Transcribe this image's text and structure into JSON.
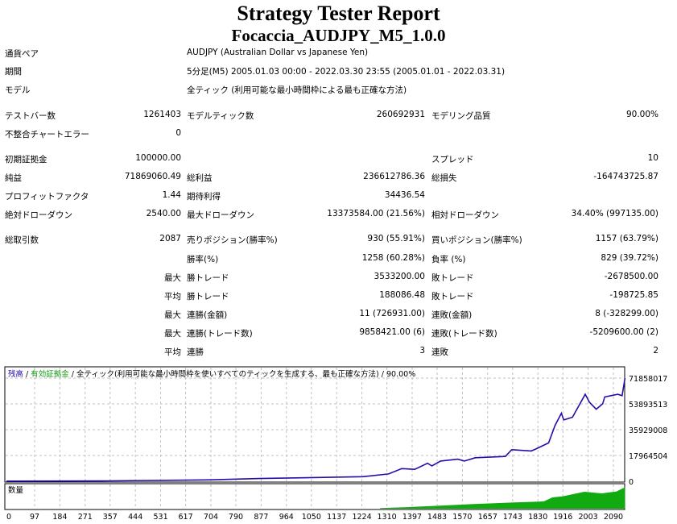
{
  "header": {
    "title": "Strategy Tester Report",
    "subtitle": "Focaccia_AUDJPY_M5_1.0.0"
  },
  "rows": [
    {
      "l1": "通貨ペア",
      "l2": "AUDJPY (Australian Dollar vs Japanese Yen)"
    },
    {
      "l1": "期間",
      "l2": "5分足(M5) 2005.01.03 00:00 - 2022.03.30 23:55 (2005.01.01 - 2022.03.31)"
    },
    {
      "l1": "モデル",
      "l2": "全ティック (利用可能な最小時間枠による最も正確な方法)"
    },
    {
      "l1": "テストバー数",
      "v1": "1261403",
      "l2": "モデルティック数",
      "v2": "260692931",
      "l3": "モデリング品質",
      "v3": "90.00%"
    },
    {
      "l1": "不整合チャートエラー",
      "v1": "0"
    },
    {
      "l1": "初期証拠金",
      "v1": "100000.00",
      "l3": "スプレッド",
      "v3": "10"
    },
    {
      "l1": "純益",
      "v1": "71869060.49",
      "l2": "総利益",
      "v2": "236612786.36",
      "l3": "総損失",
      "v3": "-164743725.87"
    },
    {
      "l1": "プロフィットファクタ",
      "v1": "1.44",
      "l2": "期待利得",
      "v2": "34436.54"
    },
    {
      "l1": "絶対ドローダウン",
      "v1": "2540.00",
      "l2": "最大ドローダウン",
      "v2": "13373584.00 (21.56%)",
      "l3": "相対ドローダウン",
      "v3": "34.40% (997135.00)"
    },
    {
      "l1": "総取引数",
      "v1": "2087",
      "l2": "売りポジション(勝率%)",
      "v2": "930 (55.91%)",
      "l3": "買いポジション(勝率%)",
      "v3": "1157 (63.79%)"
    },
    {
      "l2": "勝率(%)",
      "v2": "1258 (60.28%)",
      "l3": "負率 (%)",
      "v3": "829 (39.72%)"
    },
    {
      "v1": "最大",
      "l2": "勝トレード",
      "v2": "3533200.00",
      "l3": "敗トレード",
      "v3": "-2678500.00"
    },
    {
      "v1": "平均",
      "l2": "勝トレード",
      "v2": "188086.48",
      "l3": "敗トレード",
      "v3": "-198725.85"
    },
    {
      "v1": "最大",
      "l2": "連勝(金額)",
      "v2": "11 (726931.00)",
      "l3": "連敗(金額)",
      "v3": "8 (-328299.00)"
    },
    {
      "v1": "最大",
      "l2": "連勝(トレード数)",
      "v2": "9858421.00 (6)",
      "l3": "連敗(トレード数)",
      "v3": "-5209600.00 (2)"
    },
    {
      "v1": "平均",
      "l2": "連勝",
      "v2": "3",
      "l3": "連敗",
      "v3": "2"
    }
  ],
  "chart_data": {
    "type": "line",
    "legend": {
      "balance": "残高",
      "sep1": " / ",
      "equity": "有効証拠金",
      "sep2": " / ",
      "model": "全ティック(利用可能な最小時間枠を使いすべてのティックを生成する、最も正確な方法)",
      "sep3": " / ",
      "quality": "90.00%"
    },
    "volume_label": "数量",
    "colors": {
      "balance": "#2a0aa8",
      "equity": "#119911",
      "volume": "#11aa11",
      "grid": "#c0c0c0"
    },
    "xlim": [
      0,
      2135
    ],
    "ylim": [
      0,
      71858017
    ],
    "x_ticks": [
      0,
      97,
      184,
      271,
      357,
      444,
      531,
      617,
      704,
      790,
      877,
      964,
      1050,
      1137,
      1224,
      1310,
      1397,
      1483,
      1570,
      1657,
      1743,
      1830,
      1916,
      2003,
      2090
    ],
    "y_ticks": [
      "71858017",
      "53893513",
      "35929008",
      "17964504",
      "0"
    ],
    "series": [
      {
        "name": "残高",
        "x": [
          0,
          350,
          706,
          870,
          1227,
          1316,
          1361,
          1406,
          1450,
          1465,
          1495,
          1554,
          1577,
          1614,
          1718,
          1740,
          1807,
          1822,
          1867,
          1889,
          1911,
          1919,
          1949,
          1993,
          2008,
          2031,
          2053,
          2060,
          2105,
          2120,
          2130
        ],
        "values": [
          100000,
          300000,
          1000000,
          1900000,
          3200000,
          5100000,
          8800000,
          8300000,
          12600000,
          10700000,
          14100000,
          15400000,
          14100000,
          16400000,
          17300000,
          22000000,
          21100000,
          22400000,
          26700000,
          38900000,
          47400000,
          42700000,
          44600000,
          60600000,
          54900000,
          50200000,
          54000000,
          58700000,
          60600000,
          59600000,
          71858017
        ]
      },
      {
        "name": "数量",
        "x": [
          1287,
          1400,
          1500,
          1600,
          1750,
          1850,
          1880,
          1916,
          1990,
          2050,
          2100,
          2130
        ],
        "values": [
          0.03,
          0.08,
          0.14,
          0.2,
          0.28,
          0.32,
          0.5,
          0.55,
          0.75,
          0.68,
          0.76,
          0.95
        ]
      }
    ]
  }
}
